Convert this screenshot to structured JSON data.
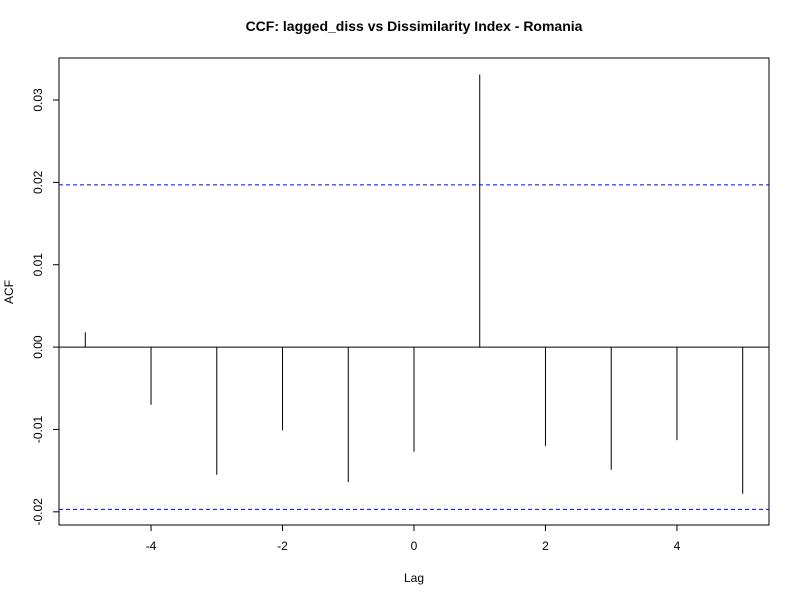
{
  "chart_data": {
    "type": "bar",
    "title": "CCF: lagged_diss vs Dissimilarity Index - Romania",
    "xlabel": "Lag",
    "ylabel": "ACF",
    "x": [
      -5,
      -4,
      -3,
      -2,
      -1,
      0,
      1,
      2,
      3,
      4,
      5
    ],
    "values": [
      0.0018,
      -0.007,
      -0.0155,
      -0.0101,
      -0.0164,
      -0.0127,
      0.0331,
      -0.012,
      -0.0149,
      -0.0113,
      -0.0178
    ],
    "xlim": [
      -5.4,
      5.4
    ],
    "ylim": [
      -0.0216,
      0.0351
    ],
    "xticks": [
      -4,
      -2,
      0,
      2,
      4
    ],
    "xtick_labels": [
      "-4",
      "-2",
      "0",
      "2",
      "4"
    ],
    "yticks": [
      -0.02,
      -0.01,
      0.0,
      0.01,
      0.02,
      0.03
    ],
    "ytick_labels": [
      "-0.02",
      "-0.01",
      "0.00",
      "0.01",
      "0.02",
      "0.03"
    ],
    "confidence_bounds": [
      0.0197,
      -0.0197
    ],
    "zero_line": true,
    "grid": false,
    "colors": {
      "bars": "#000000",
      "bounds": "#0000ff",
      "axes": "#000000"
    }
  }
}
